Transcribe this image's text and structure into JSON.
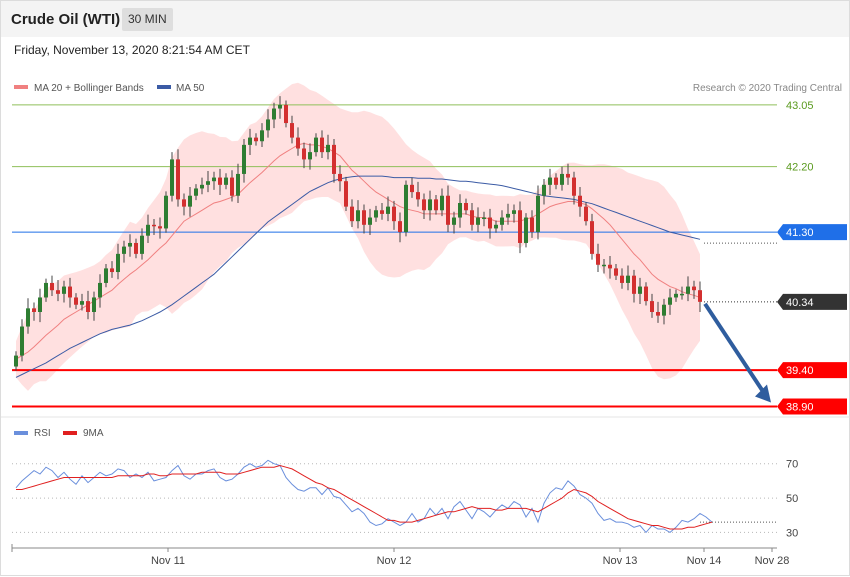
{
  "header": {
    "title": "Crude Oil (WTI)",
    "timeframe": "30 MIN",
    "timestamp": "Friday, November 13, 2020 8:21:54 AM CET"
  },
  "legend": {
    "ma20_label": "MA 20 + Bollinger Bands",
    "ma50_label": "MA 50",
    "credit": "Research © 2020 Trading Central",
    "rsi_label": "RSI",
    "ma9_label": "9MA"
  },
  "colors": {
    "candle_up": "#2e7d32",
    "candle_down": "#d32f2f",
    "bollinger_fill": "#ffd6d6",
    "ma20": "#f08080",
    "ma50": "#3b5ba5",
    "resistance": "#8fbf5a",
    "pivot": "#1f6fe8",
    "support": "#ff0000",
    "current": "#333333",
    "forecast_arrow": "#2f5d9e",
    "rsi": "#6a8fdc",
    "rsi_ma": "#e02020"
  },
  "chart_data": [
    {
      "type": "candlestick",
      "series": [
        {
          "name": "MA 20 + Bollinger Bands"
        },
        {
          "name": "MA 50"
        }
      ],
      "ylim": [
        38.7,
        43.2
      ],
      "x_ticks": [
        "Nov 11",
        "Nov 12",
        "Nov 13",
        "Nov 14",
        "Nov 28"
      ],
      "levels": [
        {
          "value": 43.05,
          "label": "43.05",
          "kind": "resistance"
        },
        {
          "value": 42.2,
          "label": "42.20",
          "kind": "resistance"
        },
        {
          "value": 41.3,
          "label": "41.30",
          "kind": "pivot"
        },
        {
          "value": 40.34,
          "label": "40.34",
          "kind": "current"
        },
        {
          "value": 39.4,
          "label": "39.40",
          "kind": "support"
        },
        {
          "value": 38.9,
          "label": "38.90",
          "kind": "support"
        }
      ],
      "forecast": {
        "from": 40.34,
        "to": 38.9
      },
      "close": [
        39.6,
        40.0,
        40.25,
        40.2,
        40.4,
        40.6,
        40.5,
        40.45,
        40.55,
        40.4,
        40.3,
        40.35,
        40.2,
        40.4,
        40.6,
        40.8,
        40.75,
        41.0,
        41.1,
        41.15,
        41.0,
        41.25,
        41.4,
        41.38,
        41.35,
        41.8,
        42.3,
        41.75,
        41.65,
        41.8,
        41.9,
        41.95,
        42.0,
        42.05,
        41.95,
        42.05,
        41.8,
        42.1,
        42.5,
        42.6,
        42.55,
        42.7,
        42.85,
        43.0,
        43.05,
        42.8,
        42.6,
        42.45,
        42.3,
        42.4,
        42.6,
        42.4,
        42.5,
        42.1,
        42.0,
        41.65,
        41.45,
        41.6,
        41.4,
        41.5,
        41.6,
        41.55,
        41.65,
        41.45,
        41.3,
        41.95,
        41.85,
        41.75,
        41.6,
        41.75,
        41.6,
        41.8,
        41.4,
        41.5,
        41.7,
        41.6,
        41.4,
        41.5,
        41.5,
        41.35,
        41.4,
        41.5,
        41.55,
        41.6,
        41.15,
        41.5,
        41.3,
        41.8,
        41.95,
        42.05,
        41.95,
        42.1,
        42.05,
        41.8,
        41.65,
        41.45,
        41.0,
        40.85,
        40.85,
        40.8,
        40.7,
        40.6,
        40.7,
        40.45,
        40.55,
        40.35,
        40.2,
        40.15,
        40.3,
        40.4,
        40.45,
        40.45,
        40.55,
        40.5,
        40.34
      ],
      "ma20": [
        39.55,
        39.6,
        39.65,
        39.72,
        39.8,
        39.88,
        39.95,
        40.02,
        40.1,
        40.15,
        40.2,
        40.25,
        40.3,
        40.35,
        40.4,
        40.45,
        40.5,
        40.58,
        40.65,
        40.72,
        40.78,
        40.85,
        40.92,
        41.0,
        41.08,
        41.15,
        41.25,
        41.35,
        41.45,
        41.5,
        41.55,
        41.6,
        41.65,
        41.7,
        41.72,
        41.75,
        41.78,
        41.82,
        41.9,
        41.98,
        42.05,
        42.12,
        42.2,
        42.28,
        42.35,
        42.4,
        42.45,
        42.5,
        42.52,
        42.5,
        42.5,
        42.48,
        42.45,
        42.4,
        42.35,
        42.25,
        42.15,
        42.08,
        42.0,
        41.92,
        41.85,
        41.8,
        41.75,
        41.7,
        41.65,
        41.62,
        41.6,
        41.58,
        41.55,
        41.55,
        41.55,
        41.55,
        41.55,
        41.55,
        41.55,
        41.55,
        41.52,
        41.5,
        41.5,
        41.48,
        41.45,
        41.45,
        41.45,
        41.45,
        41.45,
        41.48,
        41.5,
        41.55,
        41.6,
        41.65,
        41.68,
        41.7,
        41.72,
        41.72,
        41.7,
        41.68,
        41.62,
        41.55,
        41.48,
        41.4,
        41.3,
        41.2,
        41.1,
        41.0,
        40.92,
        40.82,
        40.72,
        40.65,
        40.6,
        40.55,
        40.52,
        40.48,
        40.45,
        40.43,
        40.4
      ],
      "ma50": [
        39.3,
        39.34,
        39.38,
        39.42,
        39.46,
        39.5,
        39.55,
        39.6,
        39.65,
        39.7,
        39.74,
        39.78,
        39.82,
        39.86,
        39.9,
        39.93,
        39.96,
        39.98,
        40.0,
        40.02,
        40.05,
        40.08,
        40.12,
        40.16,
        40.2,
        40.25,
        40.3,
        40.36,
        40.42,
        40.48,
        40.54,
        40.6,
        40.66,
        40.72,
        40.8,
        40.88,
        40.96,
        41.04,
        41.12,
        41.2,
        41.28,
        41.36,
        41.44,
        41.5,
        41.56,
        41.62,
        41.68,
        41.74,
        41.8,
        41.86,
        41.9,
        41.94,
        41.98,
        42.01,
        42.03,
        42.05,
        42.06,
        42.07,
        42.07,
        42.07,
        42.07,
        42.07,
        42.06,
        42.05,
        42.05,
        42.05,
        42.05,
        42.04,
        42.04,
        42.04,
        42.03,
        42.03,
        42.02,
        42.01,
        42.0,
        42.0,
        41.99,
        41.98,
        41.97,
        41.96,
        41.95,
        41.94,
        41.92,
        41.9,
        41.88,
        41.86,
        41.84,
        41.82,
        41.8,
        41.79,
        41.78,
        41.77,
        41.76,
        41.75,
        41.73,
        41.71,
        41.69,
        41.66,
        41.63,
        41.6,
        41.57,
        41.54,
        41.51,
        41.48,
        41.45,
        41.42,
        41.39,
        41.36,
        41.33,
        41.3,
        41.28,
        41.26,
        41.24,
        41.22,
        41.2
      ]
    },
    {
      "type": "line",
      "series": [
        {
          "name": "RSI"
        },
        {
          "name": "9MA"
        }
      ],
      "ylim": [
        25,
        78
      ],
      "yticks": [
        "70",
        "50",
        "30"
      ],
      "rsi": [
        56,
        60,
        63,
        66,
        64,
        68,
        66,
        62,
        65,
        61,
        58,
        63,
        59,
        62,
        65,
        63,
        64,
        67,
        66,
        62,
        64,
        62,
        65,
        60,
        61,
        62,
        66,
        69,
        63,
        61,
        64,
        64,
        66,
        67,
        62,
        60,
        61,
        64,
        68,
        70,
        68,
        69,
        72,
        70,
        69,
        62,
        58,
        55,
        54,
        56,
        56,
        52,
        56,
        51,
        50,
        46,
        42,
        44,
        41,
        36,
        34,
        35,
        38,
        36,
        34,
        36,
        41,
        36,
        38,
        44,
        40,
        44,
        38,
        45,
        48,
        43,
        38,
        44,
        42,
        39,
        43,
        46,
        44,
        48,
        46,
        39,
        44,
        36,
        47,
        53,
        56,
        55,
        60,
        57,
        52,
        50,
        47,
        41,
        37,
        38,
        36,
        36,
        35,
        33,
        34,
        30,
        34,
        32,
        32,
        30,
        33,
        37,
        36,
        38,
        41,
        39,
        36
      ],
      "rsi_ma": [
        55,
        55,
        56,
        57,
        58,
        59,
        60,
        61,
        62,
        62,
        62,
        62,
        62,
        62,
        62,
        62,
        62,
        63,
        63,
        63,
        63,
        63,
        64,
        64,
        63,
        63,
        64,
        64,
        64,
        64,
        64,
        65,
        65,
        65,
        65,
        64,
        64,
        64,
        65,
        66,
        67,
        68,
        68,
        68,
        69,
        68,
        67,
        65,
        63,
        61,
        59,
        58,
        56,
        55,
        53,
        51,
        49,
        47,
        45,
        43,
        41,
        39,
        37,
        37,
        36,
        36,
        36,
        37,
        38,
        39,
        40,
        41,
        42,
        42,
        43,
        44,
        45,
        44,
        44,
        44,
        43,
        43,
        44,
        44,
        44,
        44,
        43,
        42,
        44,
        46,
        48,
        50,
        53,
        55,
        54,
        53,
        51,
        48,
        46,
        44,
        42,
        40,
        38,
        37,
        36,
        35,
        34,
        34,
        33,
        32,
        32,
        32,
        33,
        33,
        34,
        35,
        36
      ]
    }
  ]
}
